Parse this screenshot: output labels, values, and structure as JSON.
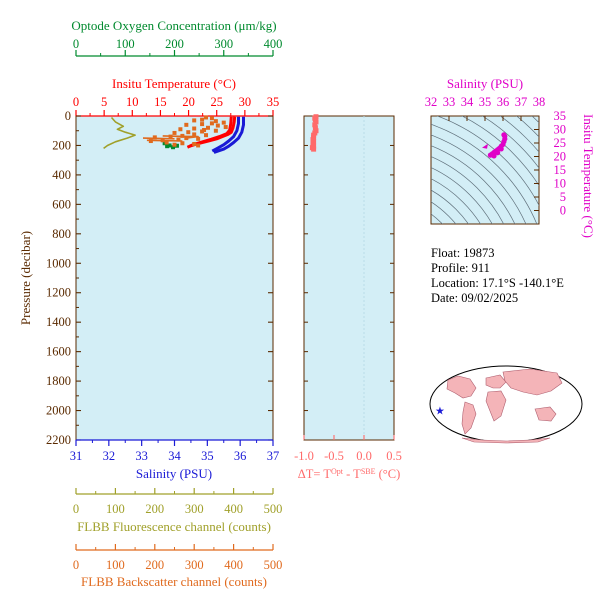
{
  "colors": {
    "plot_bg": "#d3eef6",
    "temperature": "#ff0000",
    "salinity": "#1a1ad6",
    "oxygen": "#008a2e",
    "fluorescence": "#a0a02a",
    "backscatter": "#e06a1e",
    "delta_t": "#ff6a6a",
    "ts_diagram": "#e000c8",
    "axis_brown": "#5a2a00"
  },
  "chart_data": [
    {
      "type": "line",
      "name": "profile",
      "ylabel": "Pressure (decibar)",
      "ylim": [
        2200,
        0
      ],
      "yticks": [
        0,
        200,
        400,
        600,
        800,
        1000,
        1200,
        1400,
        1600,
        1800,
        2000,
        2200
      ],
      "axes": {
        "oxygen": {
          "label": "Optode Oxygen Concentration (μm/kg)",
          "range": [
            0,
            400
          ],
          "ticks": [
            0,
            100,
            200,
            300,
            400
          ]
        },
        "temperature": {
          "label": "Insitu Temperature (°C)",
          "range": [
            0,
            35
          ],
          "ticks": [
            0,
            5,
            10,
            15,
            20,
            25,
            30,
            35
          ]
        },
        "salinity": {
          "label": "Salinity (PSU)",
          "range": [
            31,
            37
          ],
          "ticks": [
            31,
            32,
            33,
            34,
            35,
            36,
            37
          ]
        },
        "fluorescence": {
          "label": "FLBB Fluorescence channel (counts)",
          "range": [
            0,
            500
          ],
          "ticks": [
            0,
            100,
            200,
            300,
            400,
            500
          ]
        },
        "backscatter": {
          "label": "FLBB Backscatter channel (counts)",
          "range": [
            0,
            500
          ],
          "ticks": [
            0,
            100,
            200,
            300,
            400,
            500
          ]
        }
      },
      "series": [
        {
          "axis": "temperature",
          "style": "lines",
          "tracks": [
            [
              [
                28.2,
                5
              ],
              [
                28.1,
                40
              ],
              [
                27.9,
                80
              ],
              [
                27.6,
                110
              ],
              [
                27.0,
                125
              ],
              [
                26.0,
                140
              ],
              [
                25.0,
                155
              ],
              [
                23.5,
                170
              ],
              [
                22.0,
                185
              ],
              [
                20.5,
                200
              ],
              [
                19.8,
                212
              ]
            ],
            [
              [
                27.6,
                5
              ],
              [
                27.5,
                50
              ],
              [
                27.3,
                95
              ],
              [
                26.8,
                120
              ],
              [
                25.5,
                140
              ],
              [
                24.0,
                158
              ],
              [
                22.5,
                175
              ],
              [
                21.0,
                192
              ],
              [
                20.2,
                205
              ]
            ]
          ]
        },
        {
          "axis": "salinity",
          "style": "lines",
          "tracks": [
            [
              [
                36.1,
                5
              ],
              [
                36.1,
                60
              ],
              [
                36.05,
                110
              ],
              [
                35.95,
                150
              ],
              [
                35.8,
                180
              ],
              [
                35.65,
                205
              ],
              [
                35.5,
                225
              ],
              [
                35.3,
                240
              ],
              [
                35.2,
                248
              ]
            ],
            [
              [
                35.95,
                5
              ],
              [
                35.95,
                50
              ],
              [
                35.9,
                100
              ],
              [
                35.8,
                140
              ],
              [
                35.65,
                170
              ],
              [
                35.5,
                195
              ],
              [
                35.3,
                220
              ],
              [
                35.15,
                238
              ]
            ]
          ]
        },
        {
          "axis": "oxygen",
          "style": "points",
          "values": [
            [
              180,
              185
            ],
            [
              190,
              200
            ],
            [
              197,
              212
            ],
            [
              205,
              202
            ],
            [
              185,
              205
            ]
          ]
        },
        {
          "axis": "fluorescence",
          "style": "lines",
          "tracks": [
            [
              [
                90,
                10
              ],
              [
                100,
                40
              ],
              [
                120,
                70
              ],
              [
                105,
                90
              ],
              [
                125,
                110
              ],
              [
                150,
                130
              ],
              [
                130,
                150
              ],
              [
                100,
                175
              ],
              [
                80,
                200
              ],
              [
                70,
                220
              ]
            ]
          ]
        },
        {
          "axis": "backscatter",
          "style": "points",
          "values": [
            [
              330,
              10
            ],
            [
              345,
              15
            ],
            [
              320,
              25
            ],
            [
              300,
              30
            ],
            [
              355,
              35
            ],
            [
              375,
              45
            ],
            [
              345,
              50
            ],
            [
              320,
              55
            ],
            [
              280,
              60
            ],
            [
              360,
              65
            ],
            [
              380,
              75
            ],
            [
              335,
              80
            ],
            [
              300,
              85
            ],
            [
              265,
              90
            ],
            [
              325,
              95
            ],
            [
              355,
              100
            ],
            [
              320,
              105
            ],
            [
              285,
              110
            ],
            [
              250,
              115
            ],
            [
              300,
              125
            ],
            [
              330,
              130
            ],
            [
              270,
              135
            ],
            [
              240,
              140
            ],
            [
              200,
              145
            ],
            [
              280,
              150
            ],
            [
              310,
              155
            ],
            [
              260,
              160
            ],
            [
              220,
              165
            ],
            [
              190,
              170
            ],
            [
              230,
              180
            ],
            [
              270,
              185
            ],
            [
              300,
              190
            ],
            [
              250,
              195
            ],
            [
              310,
              200
            ]
          ]
        },
        {
          "axis": "backscatter",
          "style": "lines",
          "tracks": [
            [
              [
                220,
                135
              ],
              [
                260,
                138
              ],
              [
                310,
                140
              ],
              [
                280,
                150
              ]
            ],
            [
              [
                170,
                150
              ],
              [
                210,
                152
              ],
              [
                250,
                155
              ]
            ],
            [
              [
                180,
                165
              ],
              [
                230,
                168
              ],
              [
                270,
                170
              ]
            ]
          ]
        }
      ]
    },
    {
      "type": "scatter",
      "name": "delta_t",
      "xlabel": "ΔT= T",
      "xlabel_sup1": "Opt",
      "xlabel_mid": " - T",
      "xlabel_sup2": "SBE",
      "xlabel_end": " (°C)",
      "xlim": [
        -1.0,
        0.5
      ],
      "xticks": [
        "-1.0",
        "-0.5",
        "0.0",
        "0.5"
      ],
      "ylim": [
        2200,
        0
      ],
      "values": [
        [
          -0.8,
          5
        ],
        [
          -0.82,
          15
        ],
        [
          -0.81,
          25
        ],
        [
          -0.8,
          40
        ],
        [
          -0.82,
          60
        ],
        [
          -0.81,
          80
        ],
        [
          -0.8,
          100
        ],
        [
          -0.82,
          115
        ],
        [
          -0.84,
          130
        ],
        [
          -0.84,
          145
        ],
        [
          -0.85,
          160
        ],
        [
          -0.84,
          175
        ],
        [
          -0.85,
          190
        ],
        [
          -0.84,
          205
        ],
        [
          -0.86,
          215
        ],
        [
          -0.84,
          225
        ]
      ]
    },
    {
      "type": "scatter",
      "name": "ts_diagram",
      "xlabel": "Salinity (PSU)",
      "ylabel": "Insitu Temperature (°C)",
      "xlim": [
        32,
        38
      ],
      "ylim": [
        -5,
        35
      ],
      "xticks": [
        32,
        33,
        34,
        35,
        36,
        37,
        38
      ],
      "yticks": [
        0,
        5,
        10,
        15,
        20,
        25,
        30,
        35
      ],
      "values": [
        [
          35.3,
          20.5
        ],
        [
          35.4,
          21
        ],
        [
          35.5,
          21.5
        ],
        [
          35.6,
          22
        ],
        [
          35.7,
          22.5
        ],
        [
          35.8,
          23
        ],
        [
          35.9,
          23.8
        ],
        [
          36.0,
          24.5
        ],
        [
          36.05,
          25.5
        ],
        [
          36.1,
          26.5
        ],
        [
          36.1,
          27.5
        ],
        [
          36.05,
          28
        ],
        [
          35.5,
          20.2
        ],
        [
          35.7,
          21.4
        ],
        [
          35.9,
          22.8
        ]
      ],
      "marker": [
        35.0,
        24.0
      ]
    }
  ],
  "float_info": {
    "float": "Float:  19873",
    "profile": "Profile:  911",
    "location": "Location:  17.1°S  -140.1°E",
    "date": "Date:  09/02/2025"
  },
  "map": {
    "marker_lon": -140.1,
    "marker_lat": -17.1
  }
}
